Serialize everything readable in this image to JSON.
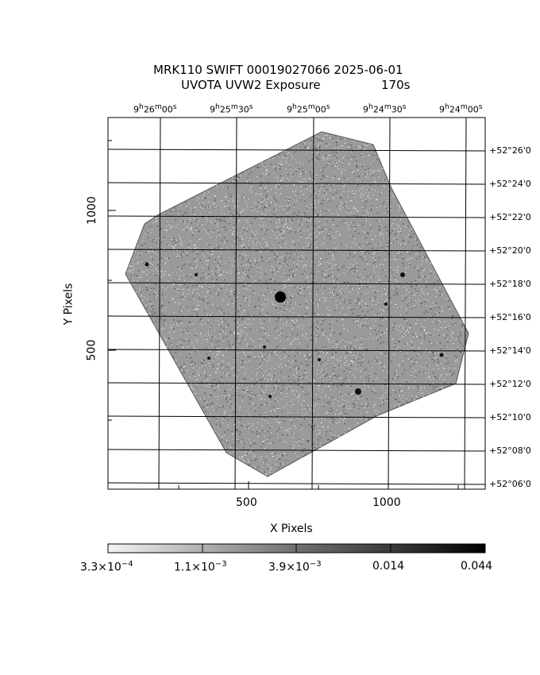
{
  "title": {
    "line1": "MRK110 SWIFT 00019027066 2025-06-01",
    "line2_left": "UVOTA UVW2 Exposure",
    "line2_right": "170s"
  },
  "axes": {
    "xlabel": "X Pixels",
    "ylabel": "Y Pixels",
    "x_ticks": [
      "500",
      "1000"
    ],
    "y_ticks": [
      "500",
      "1000"
    ]
  },
  "ra_labels": [
    {
      "h": "9",
      "m": "26",
      "s": "00"
    },
    {
      "h": "9",
      "m": "25",
      "s": "30"
    },
    {
      "h": "9",
      "m": "25",
      "s": "00"
    },
    {
      "h": "9",
      "m": "24",
      "s": "30"
    },
    {
      "h": "9",
      "m": "24",
      "s": "00"
    }
  ],
  "dec_labels": [
    "+52°26'0",
    "+52°24'0",
    "+52°22'0",
    "+52°20'0",
    "+52°18'0",
    "+52°16'0",
    "+52°14'0",
    "+52°12'0",
    "+52°10'0",
    "+52°08'0",
    "+52°06'0"
  ],
  "colorbar": {
    "labels": [
      {
        "mant": "3.3×10",
        "exp": "−4"
      },
      {
        "mant": "1.1×10",
        "exp": "−3"
      },
      {
        "mant": "3.9×10",
        "exp": "−3"
      },
      {
        "mant": "0.014",
        "exp": ""
      },
      {
        "mant": "0.044",
        "exp": ""
      }
    ]
  },
  "colors": {
    "background": "#ffffff",
    "ink": "#000000",
    "noise": "#555555"
  }
}
